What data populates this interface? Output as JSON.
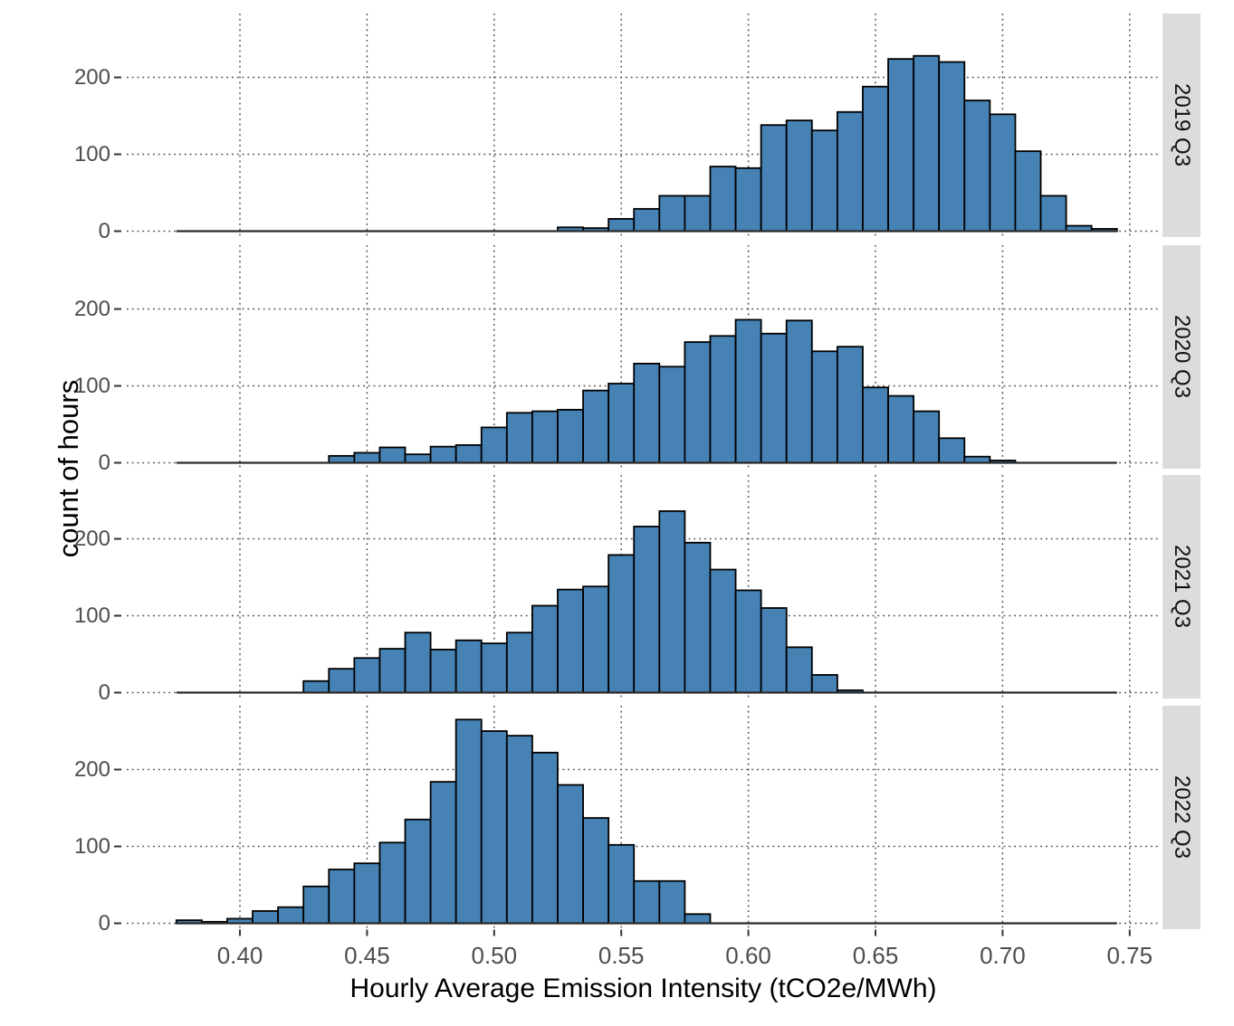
{
  "chart_data": {
    "type": "bar",
    "subtype": "faceted-histogram",
    "title": "",
    "xlabel": "Hourly Average Emission Intensity (tCO2e/MWh)",
    "ylabel": "count of hours",
    "x_ticks": [
      0.4,
      0.45,
      0.5,
      0.55,
      0.6,
      0.65,
      0.7,
      0.75
    ],
    "x_tick_labels": [
      "0.40",
      "0.45",
      "0.50",
      "0.55",
      "0.60",
      "0.65",
      "0.70",
      "0.75"
    ],
    "y_ticks": [
      0,
      100,
      200
    ],
    "y_tick_labels": [
      "0",
      "100",
      "200"
    ],
    "xlim": [
      0.3555,
      0.7618
    ],
    "ylim": [
      0,
      283
    ],
    "grid": "dotted",
    "legend": "none",
    "bin_width": 0.01,
    "zero_line_range": [
      0.375,
      0.745
    ],
    "colors": {
      "bar_fill": "#4682B4",
      "bar_stroke": "#000000",
      "grid": "#4d4d4d",
      "tick_label": "#4d4d4d",
      "strip_bg": "#dcdcdc",
      "strip_text": "#111111",
      "axis_title": "#000000"
    },
    "facets": [
      {
        "label": "2019 Q3",
        "bin_start": 0.525,
        "counts": [
          5,
          4,
          16,
          29,
          46,
          46,
          84,
          82,
          138,
          144,
          131,
          155,
          188,
          224,
          228,
          220,
          170,
          152,
          104,
          46,
          7,
          3
        ]
      },
      {
        "label": "2020 Q3",
        "bin_start": 0.435,
        "counts": [
          9,
          13,
          20,
          11,
          21,
          23,
          46,
          65,
          67,
          69,
          94,
          103,
          129,
          125,
          157,
          165,
          186,
          168,
          185,
          145,
          151,
          98,
          87,
          67,
          32,
          8,
          3
        ]
      },
      {
        "label": "2021 Q3",
        "bin_start": 0.425,
        "counts": [
          15,
          31,
          45,
          57,
          78,
          56,
          68,
          64,
          78,
          113,
          134,
          138,
          179,
          216,
          236,
          195,
          160,
          133,
          110,
          59,
          23,
          3
        ]
      },
      {
        "label": "2022 Q3",
        "bin_start": 0.375,
        "counts": [
          4,
          2,
          6,
          16,
          21,
          48,
          70,
          78,
          105,
          135,
          184,
          265,
          250,
          244,
          222,
          180,
          137,
          102,
          55,
          55,
          12
        ]
      }
    ]
  }
}
